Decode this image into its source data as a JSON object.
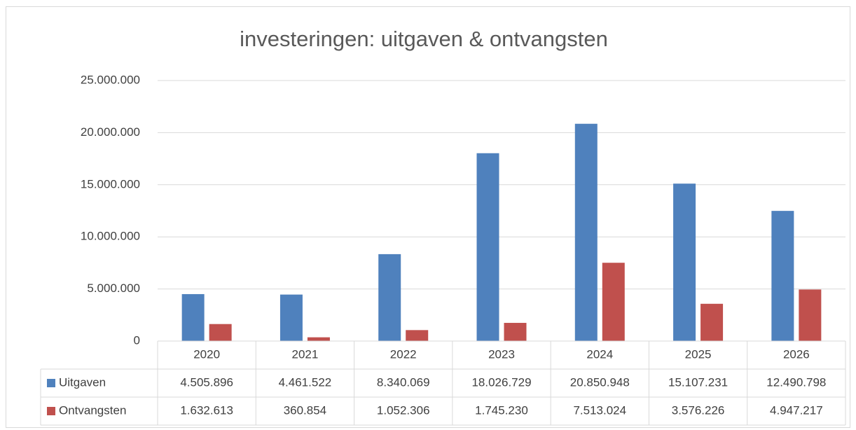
{
  "chart_data": {
    "type": "bar",
    "title": "investeringen: uitgaven & ontvangsten",
    "categories": [
      "2020",
      "2021",
      "2022",
      "2023",
      "2024",
      "2025",
      "2026"
    ],
    "series": [
      {
        "name": "Uitgaven",
        "color": "#4f81bd",
        "values": [
          4505896,
          4461522,
          8340069,
          18026729,
          20850948,
          15107231,
          12490798
        ],
        "value_labels": [
          "4.505.896",
          "4.461.522",
          "8.340.069",
          "18.026.729",
          "20.850.948",
          "15.107.231",
          "12.490.798"
        ]
      },
      {
        "name": "Ontvangsten",
        "color": "#c0504d",
        "values": [
          1632613,
          360854,
          1052306,
          1745230,
          7513024,
          3576226,
          4947217
        ],
        "value_labels": [
          "1.632.613",
          "360.854",
          "1.052.306",
          "1.745.230",
          "7.513.024",
          "3.576.226",
          "4.947.217"
        ]
      }
    ],
    "ylim": [
      0,
      25000000
    ],
    "yticks": [
      0,
      {
        "value": 5000000,
        "label": "5.000.000"
      },
      {
        "value": 10000000,
        "label": "10.000.000"
      },
      {
        "value": 15000000,
        "label": "15.000.000"
      },
      {
        "value": 20000000,
        "label": "20.000.000"
      },
      {
        "value": 25000000,
        "label": "25.000.000"
      }
    ],
    "grid": true,
    "data_table": true
  }
}
